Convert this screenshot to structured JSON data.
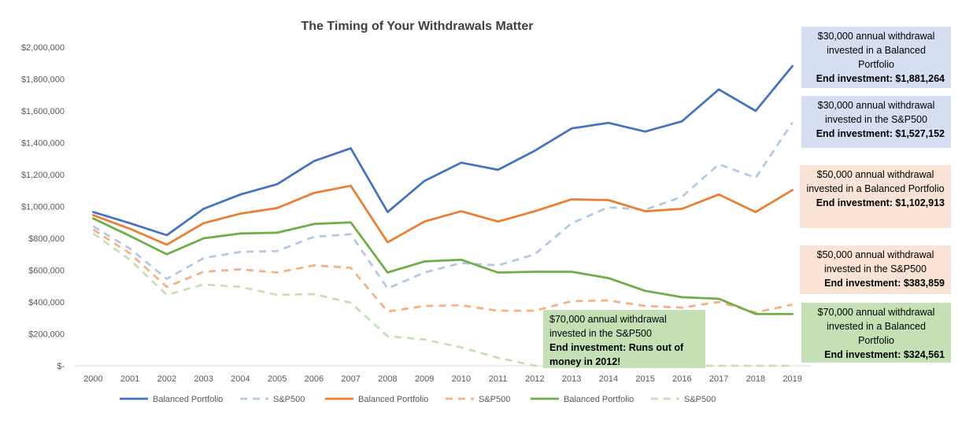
{
  "chart_data": {
    "type": "line",
    "title": "The Timing of Your Withdrawals Matter",
    "xlabel": "",
    "ylabel": "",
    "x": [
      "2000",
      "2001",
      "2002",
      "2003",
      "2004",
      "2005",
      "2006",
      "2007",
      "2008",
      "2009",
      "2010",
      "2011",
      "2012",
      "2013",
      "2014",
      "2015",
      "2016",
      "2017",
      "2018",
      "2019"
    ],
    "ylim": [
      0,
      2000000
    ],
    "y_ticks": [
      "$-",
      "$200,000",
      "$400,000",
      "$600,000",
      "$800,000",
      "$1,000,000",
      "$1,200,000",
      "$1,400,000",
      "$1,600,000",
      "$1,800,000",
      "$2,000,000"
    ],
    "y_tick_values": [
      0,
      200000,
      400000,
      600000,
      800000,
      1000000,
      1200000,
      1400000,
      1600000,
      1800000,
      2000000
    ],
    "grid": false,
    "legend_position": "bottom",
    "series": [
      {
        "name": "Balanced Portfolio",
        "color": "#4472C4",
        "dashed": false,
        "values": [
          965000,
          895000,
          820000,
          985000,
          1075000,
          1140000,
          1285000,
          1365000,
          965000,
          1160000,
          1275000,
          1230000,
          1350000,
          1490000,
          1525000,
          1470000,
          1535000,
          1735000,
          1600000,
          1881264
        ]
      },
      {
        "name": "S&P500",
        "color": "#B4C7E7",
        "dashed": true,
        "values": [
          875000,
          735000,
          545000,
          675000,
          715000,
          720000,
          810000,
          825000,
          485000,
          585000,
          645000,
          630000,
          700000,
          895000,
          995000,
          980000,
          1060000,
          1265000,
          1180000,
          1527152
        ]
      },
      {
        "name": "Balanced Portfolio",
        "color": "#ED7D31",
        "dashed": false,
        "values": [
          945000,
          860000,
          760000,
          895000,
          955000,
          990000,
          1085000,
          1130000,
          775000,
          905000,
          970000,
          905000,
          970000,
          1045000,
          1040000,
          970000,
          985000,
          1075000,
          965000,
          1102913
        ]
      },
      {
        "name": "S&P500",
        "color": "#F4B183",
        "dashed": true,
        "values": [
          855000,
          705000,
          495000,
          590000,
          605000,
          585000,
          630000,
          615000,
          340000,
          375000,
          380000,
          345000,
          345000,
          405000,
          410000,
          375000,
          365000,
          400000,
          335000,
          383859
        ]
      },
      {
        "name": "Balanced Portfolio",
        "color": "#70AD47",
        "dashed": false,
        "values": [
          925000,
          815000,
          700000,
          800000,
          830000,
          835000,
          890000,
          900000,
          585000,
          655000,
          665000,
          585000,
          590000,
          590000,
          550000,
          470000,
          430000,
          420000,
          325000,
          324561
        ]
      },
      {
        "name": "S&P500",
        "color": "#C5E0B4",
        "dashed": true,
        "values": [
          830000,
          665000,
          445000,
          510000,
          495000,
          445000,
          450000,
          395000,
          185000,
          165000,
          115000,
          50000,
          0,
          0,
          0,
          0,
          0,
          0,
          0,
          0
        ]
      }
    ]
  },
  "callouts": [
    {
      "desc": "$30,000 annual withdrawal invested in a Balanced Portfolio",
      "end": "End investment: $1,881,264",
      "bg": "#D6DFF2"
    },
    {
      "desc": "$30,000 annual withdrawal invested in the S&P500",
      "end": "End investment: $1,527,152",
      "bg": "#D6DFF2"
    },
    {
      "desc": "$50,000 annual withdrawal invested in a Balanced Portfolio",
      "end": "End investment: $1,102,913",
      "bg": "#FBE4D5"
    },
    {
      "desc": "$50,000 annual withdrawal invested in the S&P500",
      "end": "End investment: $383,859",
      "bg": "#FBE4D5"
    },
    {
      "desc": "$70,000 annual withdrawal invested in a Balanced Portfolio",
      "end": "End investment: $324,561",
      "bg": "#C5E0B4"
    },
    {
      "desc": "$70,000 annual withdrawal invested in the S&P500",
      "end": "End investment: Runs out of money in 2012!",
      "bg": "#C5E0B4"
    }
  ]
}
